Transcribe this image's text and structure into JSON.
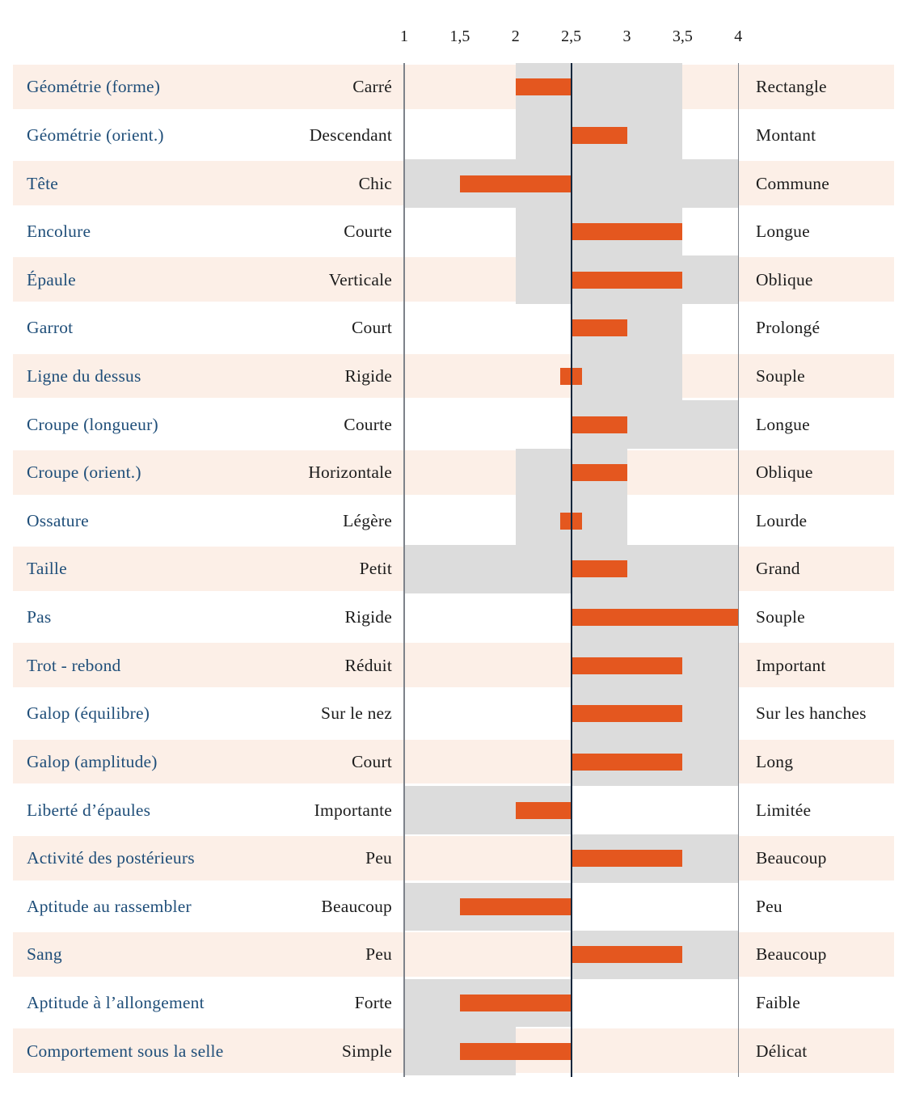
{
  "colors": {
    "pink": "#fcefe7",
    "band": "#dcdcdc",
    "bar": "#e4571f",
    "line_outer": "#7d828a",
    "line_mid": "#14273d",
    "trait_text": "#1f4e79",
    "text": "#1c1c1c",
    "background": "#ffffff"
  },
  "chart_data": {
    "type": "bar",
    "title": "",
    "xlabel": "",
    "ylabel": "",
    "legend": false,
    "grid": false,
    "x_axis": {
      "min": 1,
      "max": 4,
      "tick_labels": [
        "1",
        "1,5",
        "2",
        "2,5",
        "3",
        "3,5",
        "4"
      ],
      "tick_values": [
        1,
        1.5,
        2,
        2.5,
        3,
        3.5,
        4
      ],
      "reference_lines": [
        {
          "value": 1,
          "style": "outer"
        },
        {
          "value": 2.5,
          "style": "mid"
        },
        {
          "value": 4,
          "style": "outer"
        }
      ]
    },
    "rows": [
      {
        "trait": "Géométrie (forme)",
        "left_label": "Carré",
        "right_label": "Rectangle",
        "typical_range": [
          2,
          3.5
        ],
        "score_range": [
          2,
          2.5
        ]
      },
      {
        "trait": "Géométrie (orient.)",
        "left_label": "Descendant",
        "right_label": "Montant",
        "typical_range": [
          2,
          3.5
        ],
        "score_range": [
          2.5,
          3
        ]
      },
      {
        "trait": "Tête",
        "left_label": "Chic",
        "right_label": "Commune",
        "typical_range": [
          1,
          4
        ],
        "score_range": [
          1.5,
          2.5
        ]
      },
      {
        "trait": "Encolure",
        "left_label": "Courte",
        "right_label": "Longue",
        "typical_range": [
          2,
          3.5
        ],
        "score_range": [
          2.5,
          3.5
        ]
      },
      {
        "trait": "Épaule",
        "left_label": "Verticale",
        "right_label": "Oblique",
        "typical_range": [
          2,
          4
        ],
        "score_range": [
          2.5,
          3.5
        ]
      },
      {
        "trait": "Garrot",
        "left_label": "Court",
        "right_label": "Prolongé",
        "typical_range": [
          2.5,
          3.5
        ],
        "score_range": [
          2.5,
          3
        ]
      },
      {
        "trait": "Ligne du dessus",
        "left_label": "Rigide",
        "right_label": "Souple",
        "typical_range": [
          2.5,
          3.5
        ],
        "score_range": [
          2.4,
          2.6
        ]
      },
      {
        "trait": "Croupe (longueur)",
        "left_label": "Courte",
        "right_label": "Longue",
        "typical_range": [
          2.5,
          4
        ],
        "score_range": [
          2.5,
          3
        ]
      },
      {
        "trait": "Croupe (orient.)",
        "left_label": "Horizontale",
        "right_label": "Oblique",
        "typical_range": [
          2,
          3
        ],
        "score_range": [
          2.5,
          3
        ]
      },
      {
        "trait": "Ossature",
        "left_label": "Légère",
        "right_label": "Lourde",
        "typical_range": [
          2,
          3
        ],
        "score_range": [
          2.4,
          2.6
        ]
      },
      {
        "trait": "Taille",
        "left_label": "Petit",
        "right_label": "Grand",
        "typical_range": [
          1,
          4
        ],
        "score_range": [
          2.5,
          3
        ]
      },
      {
        "trait": "Pas",
        "left_label": "Rigide",
        "right_label": "Souple",
        "typical_range": [
          2.5,
          4
        ],
        "score_range": [
          2.5,
          4
        ]
      },
      {
        "trait": "Trot - rebond",
        "left_label": "Réduit",
        "right_label": "Important",
        "typical_range": [
          2.5,
          4
        ],
        "score_range": [
          2.5,
          3.5
        ]
      },
      {
        "trait": "Galop (équilibre)",
        "left_label": "Sur le nez",
        "right_label": "Sur les hanches",
        "typical_range": [
          2.5,
          4
        ],
        "score_range": [
          2.5,
          3.5
        ]
      },
      {
        "trait": "Galop (amplitude)",
        "left_label": "Court",
        "right_label": "Long",
        "typical_range": [
          2.5,
          4
        ],
        "score_range": [
          2.5,
          3.5
        ]
      },
      {
        "trait": "Liberté d’épaules",
        "left_label": "Importante",
        "right_label": "Limitée",
        "typical_range": [
          1,
          2.5
        ],
        "score_range": [
          2,
          2.5
        ]
      },
      {
        "trait": "Activité des postérieurs",
        "left_label": "Peu",
        "right_label": "Beaucoup",
        "typical_range": [
          2.5,
          4
        ],
        "score_range": [
          2.5,
          3.5
        ]
      },
      {
        "trait": "Aptitude au rassembler",
        "left_label": "Beaucoup",
        "right_label": "Peu",
        "typical_range": [
          1,
          2.5
        ],
        "score_range": [
          1.5,
          2.5
        ]
      },
      {
        "trait": "Sang",
        "left_label": "Peu",
        "right_label": "Beaucoup",
        "typical_range": [
          2.5,
          4
        ],
        "score_range": [
          2.5,
          3.5
        ]
      },
      {
        "trait": "Aptitude à l’allongement",
        "left_label": "Forte",
        "right_label": "Faible",
        "typical_range": [
          1,
          2.5
        ],
        "score_range": [
          1.5,
          2.5
        ]
      },
      {
        "trait": "Comportement sous la selle",
        "left_label": "Simple",
        "right_label": "Délicat",
        "typical_range": [
          1,
          2
        ],
        "score_range": [
          1.5,
          2.5
        ]
      }
    ]
  }
}
